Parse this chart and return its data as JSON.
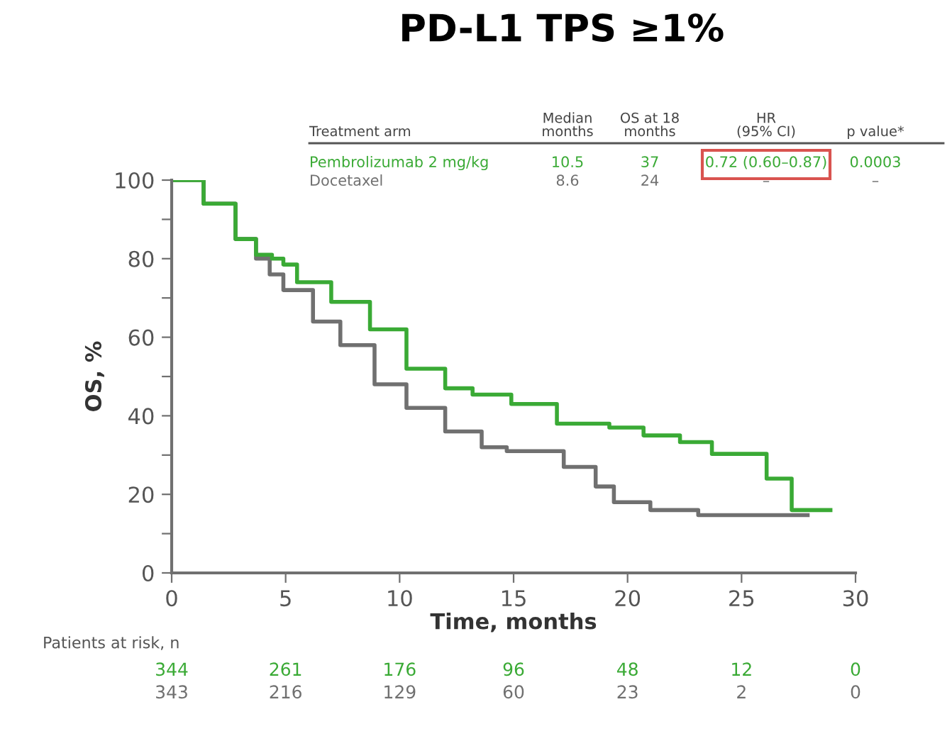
{
  "chart_data": {
    "type": "step",
    "title": "PD-L1 TPS ≥1%",
    "xlabel": "Time, months",
    "ylabel": "OS, %",
    "xlim": [
      0,
      30
    ],
    "xticks": [
      0,
      5,
      10,
      15,
      20,
      25,
      30
    ],
    "ylim": [
      0,
      100
    ],
    "yticks": [
      0,
      {
        "value": 10,
        "label": null
      },
      20,
      {
        "value": 30,
        "label": null
      },
      40,
      {
        "value": 50,
        "label": null
      },
      60,
      {
        "value": 70,
        "label": null
      },
      80,
      {
        "value": 90,
        "label": null
      },
      100
    ],
    "legend": "top",
    "grid": false,
    "line_style": "solid",
    "series": [
      {
        "name": "Pembrolizumab 2 mg/kg",
        "color": "#3aaa35",
        "x": [
          0,
          1.4,
          2.8,
          3.7,
          4.4,
          4.9,
          5.5,
          7.0,
          8.7,
          10.3,
          12.0,
          13.2,
          14.9,
          16.9,
          19.2,
          20.7,
          22.3,
          23.7,
          26.1,
          27.2,
          28.9
        ],
        "values": [
          100,
          94,
          85,
          81,
          80,
          78.5,
          74,
          69,
          62,
          52,
          47,
          45.4,
          43,
          38,
          37,
          35,
          33.3,
          30.3,
          24,
          16,
          16
        ]
      },
      {
        "name": "Docetaxel",
        "color": "#707070",
        "x": [
          0,
          1.4,
          2.8,
          3.7,
          4.3,
          4.9,
          6.2,
          7.4,
          8.9,
          10.3,
          12.0,
          13.6,
          14.7,
          17.2,
          18.6,
          19.4,
          21.0,
          23.1,
          27.9
        ],
        "values": [
          100,
          94,
          85,
          80,
          76,
          72,
          64,
          58,
          48,
          42,
          36,
          32,
          31,
          27,
          22,
          18,
          16,
          14.7,
          14.7
        ]
      }
    ],
    "annotations": [
      "Treatment arm",
      "Median\nmonths",
      "OS at 18\nmonths",
      "HR\n(95% CI)",
      "p value*",
      "10.5",
      "37",
      "0.72 (0.60–0.87)",
      "0.0003",
      "8.6",
      "24",
      "–",
      "–",
      "Patients at risk, n",
      "344",
      "261",
      "176",
      "96",
      "48",
      "12",
      "0",
      "343",
      "216",
      "129",
      "60",
      "23",
      "2",
      "0"
    ]
  }
}
